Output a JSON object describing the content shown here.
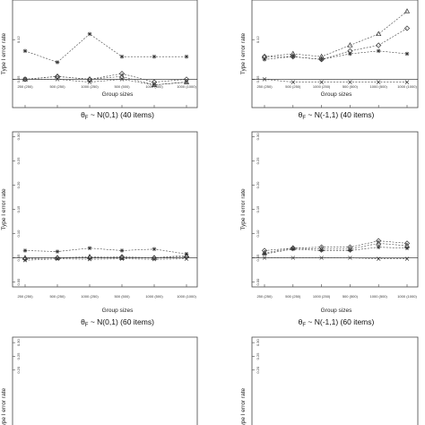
{
  "chart_data": [
    {
      "id": "p1",
      "type": "line",
      "ylabel": "Type I error rate",
      "xlabel": "Group sizes",
      "title": "θF ~ N(0,1) (40 items)",
      "categories": [
        "250 (250)",
        "500 (250)",
        "1000 (250)",
        "500 (500)",
        "1000 (500)",
        "1000 (1000)"
      ],
      "yticks": [
        "0.05",
        "0.12"
      ],
      "ylim": [
        0.0,
        0.3
      ],
      "reference_line": 0.05,
      "series": [
        {
          "marker": "star",
          "values": [
            0.1,
            0.08,
            0.13,
            0.09,
            0.09,
            0.09
          ]
        },
        {
          "marker": "diamond",
          "values": [
            0.05,
            0.055,
            0.05,
            0.06,
            0.045,
            0.05
          ]
        },
        {
          "marker": "triangle",
          "values": [
            0.05,
            0.055,
            0.05,
            0.055,
            0.04,
            0.045
          ]
        },
        {
          "marker": "x",
          "values": [
            0.05,
            0.05,
            0.045,
            0.05,
            0.04,
            0.045
          ]
        }
      ]
    },
    {
      "id": "p2",
      "type": "line",
      "ylabel": "Type I error rate",
      "xlabel": "Group sizes",
      "title": "θF ~ N(-1,1) (40 items)",
      "categories": [
        "250 (250)",
        "500 (250)",
        "1000 (250)",
        "500 (500)",
        "1000 (500)",
        "1000 (1000)"
      ],
      "yticks": [
        "0.05",
        "0.12"
      ],
      "ylim": [
        0.0,
        0.3
      ],
      "reference_line": 0.05,
      "series": [
        {
          "marker": "triangle",
          "values": [
            0.09,
            0.095,
            0.09,
            0.11,
            0.13,
            0.17
          ]
        },
        {
          "marker": "diamond",
          "values": [
            0.09,
            0.09,
            0.085,
            0.1,
            0.11,
            0.14
          ]
        },
        {
          "marker": "star",
          "values": [
            0.085,
            0.09,
            0.085,
            0.095,
            0.1,
            0.095
          ]
        },
        {
          "marker": "x",
          "values": [
            0.05,
            0.045,
            0.045,
            0.045,
            0.045,
            0.045
          ]
        }
      ]
    },
    {
      "id": "p3",
      "type": "line",
      "ylabel": "Type I error rate",
      "xlabel": "Group sizes",
      "title": "θF ~ N(0,1) (60 items)",
      "categories": [
        "250 (250)",
        "500 (250)",
        "1000 (250)",
        "500 (500)",
        "1000 (500)",
        "1000 (1000)"
      ],
      "yticks": [
        "0.00",
        "0.05",
        "0.10",
        "0.15",
        "0.20",
        "0.25",
        "0.30"
      ],
      "ylim": [
        0.0,
        0.3
      ],
      "reference_line": 0.05,
      "series": [
        {
          "marker": "star",
          "values": [
            0.065,
            0.063,
            0.07,
            0.065,
            0.068,
            0.058
          ]
        },
        {
          "marker": "triangle",
          "values": [
            0.05,
            0.05,
            0.052,
            0.05,
            0.05,
            0.055
          ]
        },
        {
          "marker": "diamond",
          "values": [
            0.048,
            0.05,
            0.05,
            0.052,
            0.05,
            0.052
          ]
        },
        {
          "marker": "x",
          "values": [
            0.045,
            0.048,
            0.047,
            0.048,
            0.047,
            0.048
          ]
        }
      ]
    },
    {
      "id": "p4",
      "type": "line",
      "ylabel": "Type I error rate",
      "xlabel": "Group sizes",
      "title": "θF ~ N(-1,1) (60 items)",
      "categories": [
        "250 (250)",
        "500 (250)",
        "1000 (250)",
        "500 (500)",
        "1000 (500)",
        "1000 (1000)"
      ],
      "yticks": [
        "0.00",
        "0.05",
        "0.10",
        "0.15",
        "0.20",
        "0.25",
        "0.30"
      ],
      "ylim": [
        0.0,
        0.3
      ],
      "reference_line": 0.05,
      "series": [
        {
          "marker": "diamond",
          "values": [
            0.065,
            0.07,
            0.072,
            0.072,
            0.085,
            0.08
          ]
        },
        {
          "marker": "triangle",
          "values": [
            0.06,
            0.07,
            0.068,
            0.068,
            0.08,
            0.075
          ]
        },
        {
          "marker": "star",
          "values": [
            0.058,
            0.068,
            0.065,
            0.065,
            0.072,
            0.07
          ]
        },
        {
          "marker": "x",
          "values": [
            0.05,
            0.05,
            0.05,
            0.05,
            0.048,
            0.048
          ]
        }
      ]
    },
    {
      "id": "p5",
      "type": "line",
      "ylabel": "Type I error rate",
      "yticks": [
        "0.30",
        "0.25",
        "0.20"
      ],
      "ylim": [
        0.0,
        0.3
      ],
      "series": []
    },
    {
      "id": "p6",
      "type": "line",
      "ylabel": "Type I error rate",
      "yticks": [
        "0.30",
        "0.25",
        "0.20"
      ],
      "ylim": [
        0.0,
        0.3
      ],
      "series": []
    }
  ]
}
